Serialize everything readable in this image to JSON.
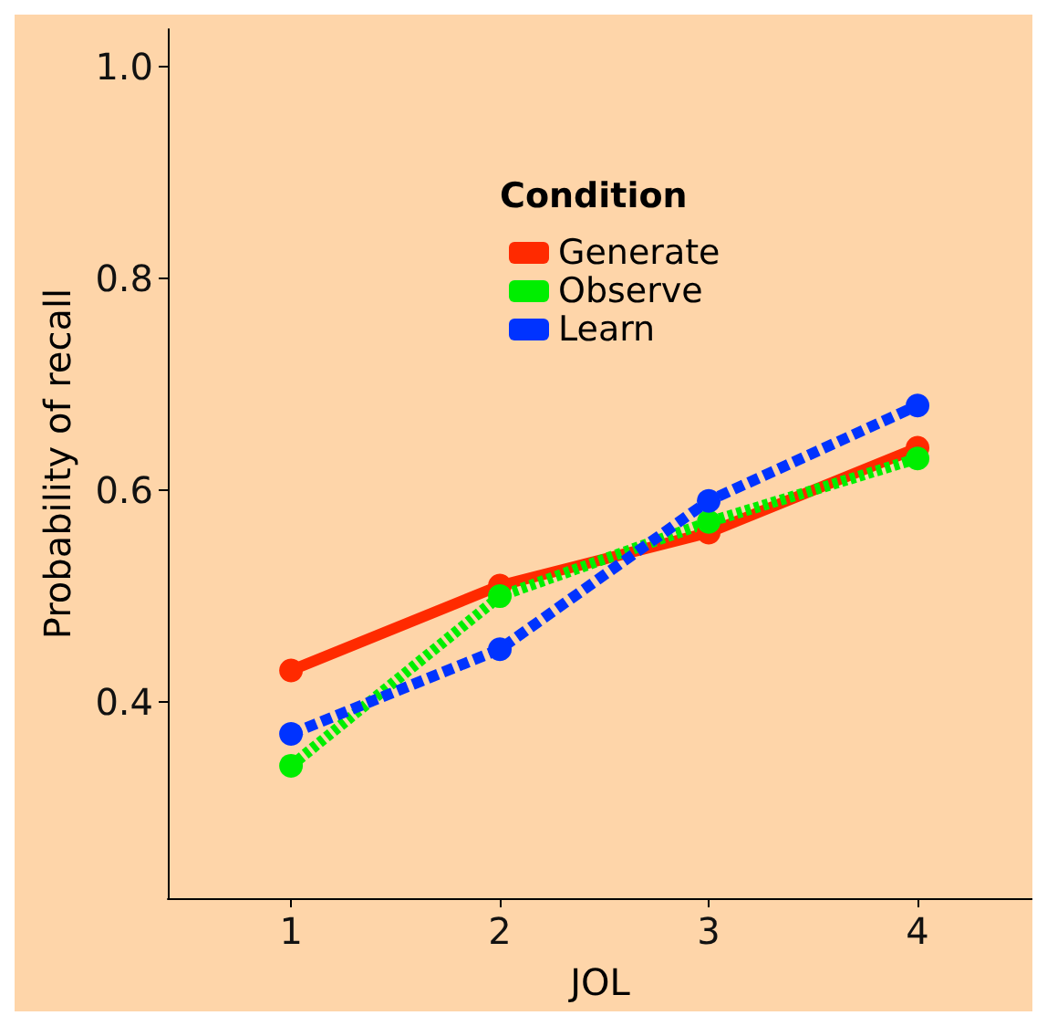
{
  "chart_data": {
    "type": "line",
    "xlabel": "JOL",
    "ylabel": "Probability of recall",
    "legend_title": "Condition",
    "legend": "top",
    "marker": "circle",
    "grid": false,
    "x": [
      1,
      2,
      3,
      4
    ],
    "xlim": [
      0.41,
      4.55
    ],
    "xticks": [
      1,
      2,
      3,
      4
    ],
    "ylim": [
      0.215,
      1.035
    ],
    "yticks": [
      {
        "value": 0.4,
        "label": "0.4"
      },
      {
        "value": 0.6,
        "label": "0.6"
      },
      {
        "value": 0.8,
        "label": "0.8"
      },
      {
        "value": 1.0,
        "label": "1.0"
      }
    ],
    "series": [
      {
        "name": "Generate",
        "color": "#ff2a00",
        "line_style": "solid",
        "values": [
          0.43,
          0.51,
          0.56,
          0.64
        ]
      },
      {
        "name": "Observe",
        "color": "#00ee00",
        "line_style": "dotted",
        "values": [
          0.34,
          0.5,
          0.57,
          0.63
        ]
      },
      {
        "name": "Learn",
        "color": "#0033ff",
        "line_style": "dashed",
        "values": [
          0.37,
          0.45,
          0.59,
          0.68
        ]
      }
    ]
  }
}
